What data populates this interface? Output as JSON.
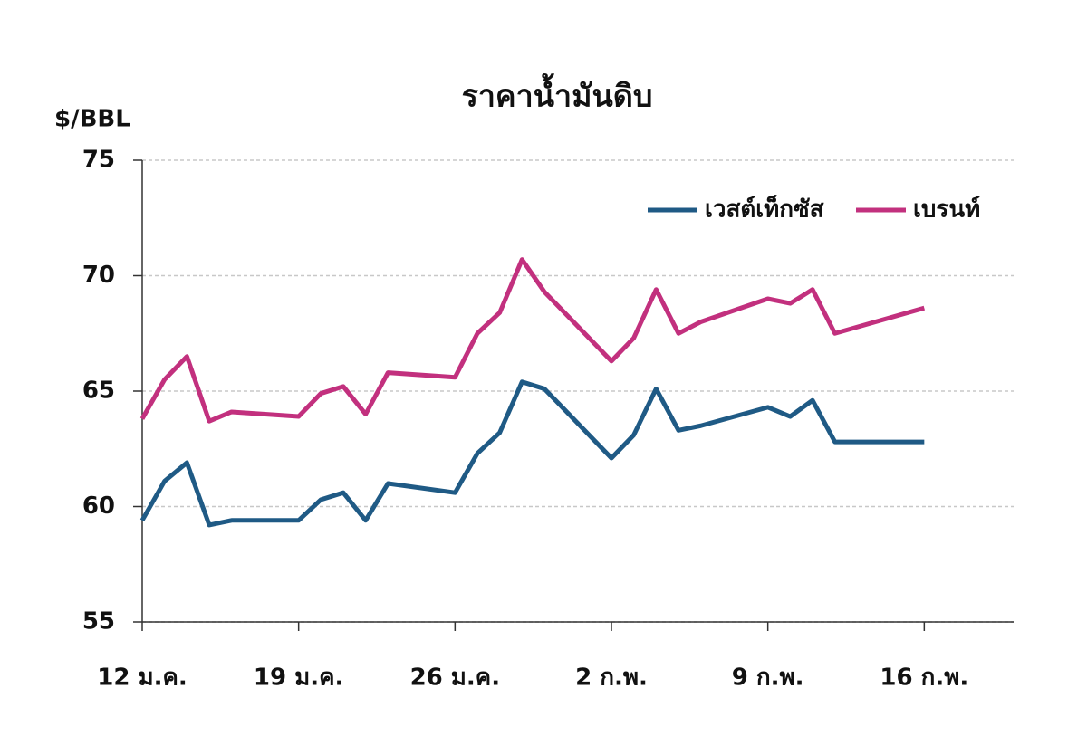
{
  "chart_data": {
    "type": "line",
    "title": "ราคาน้ำมันดิบ",
    "y_label": "$/BBL",
    "x": [
      0,
      1,
      2,
      3,
      4,
      7,
      8,
      9,
      10,
      11,
      14,
      15,
      16,
      17,
      18,
      21,
      22,
      23,
      24,
      25,
      28,
      29,
      30,
      31,
      35
    ],
    "series": [
      {
        "name": "เวสต์เท็กซัส",
        "color": "#1f5a85",
        "values": [
          59.4,
          61.1,
          61.9,
          59.2,
          59.4,
          59.4,
          60.3,
          60.6,
          59.4,
          61.0,
          60.6,
          62.3,
          63.2,
          65.4,
          65.1,
          62.1,
          63.1,
          65.1,
          63.3,
          63.5,
          64.3,
          63.9,
          64.6,
          62.8,
          62.8
        ]
      },
      {
        "name": "เบรนท์",
        "color": "#c2307e",
        "values": [
          63.8,
          65.5,
          66.5,
          63.7,
          64.1,
          63.9,
          64.9,
          65.2,
          64.0,
          65.8,
          65.6,
          67.5,
          68.4,
          70.7,
          69.3,
          66.3,
          67.3,
          69.4,
          67.5,
          68.0,
          69.0,
          68.8,
          69.4,
          67.5,
          68.6
        ]
      }
    ],
    "xlim": [
      0,
      39
    ],
    "xticks": [
      {
        "value": 0,
        "label": "12 ม.ค."
      },
      {
        "value": 7,
        "label": "19 ม.ค."
      },
      {
        "value": 14,
        "label": "26 ม.ค."
      },
      {
        "value": 21,
        "label": "2 ก.พ."
      },
      {
        "value": 28,
        "label": "9 ก.พ."
      },
      {
        "value": 35,
        "label": "16 ก.พ."
      }
    ],
    "ylim": [
      55,
      75
    ],
    "yticks": [
      55,
      60,
      65,
      70,
      75
    ],
    "grid": true,
    "legend": "top-right"
  }
}
